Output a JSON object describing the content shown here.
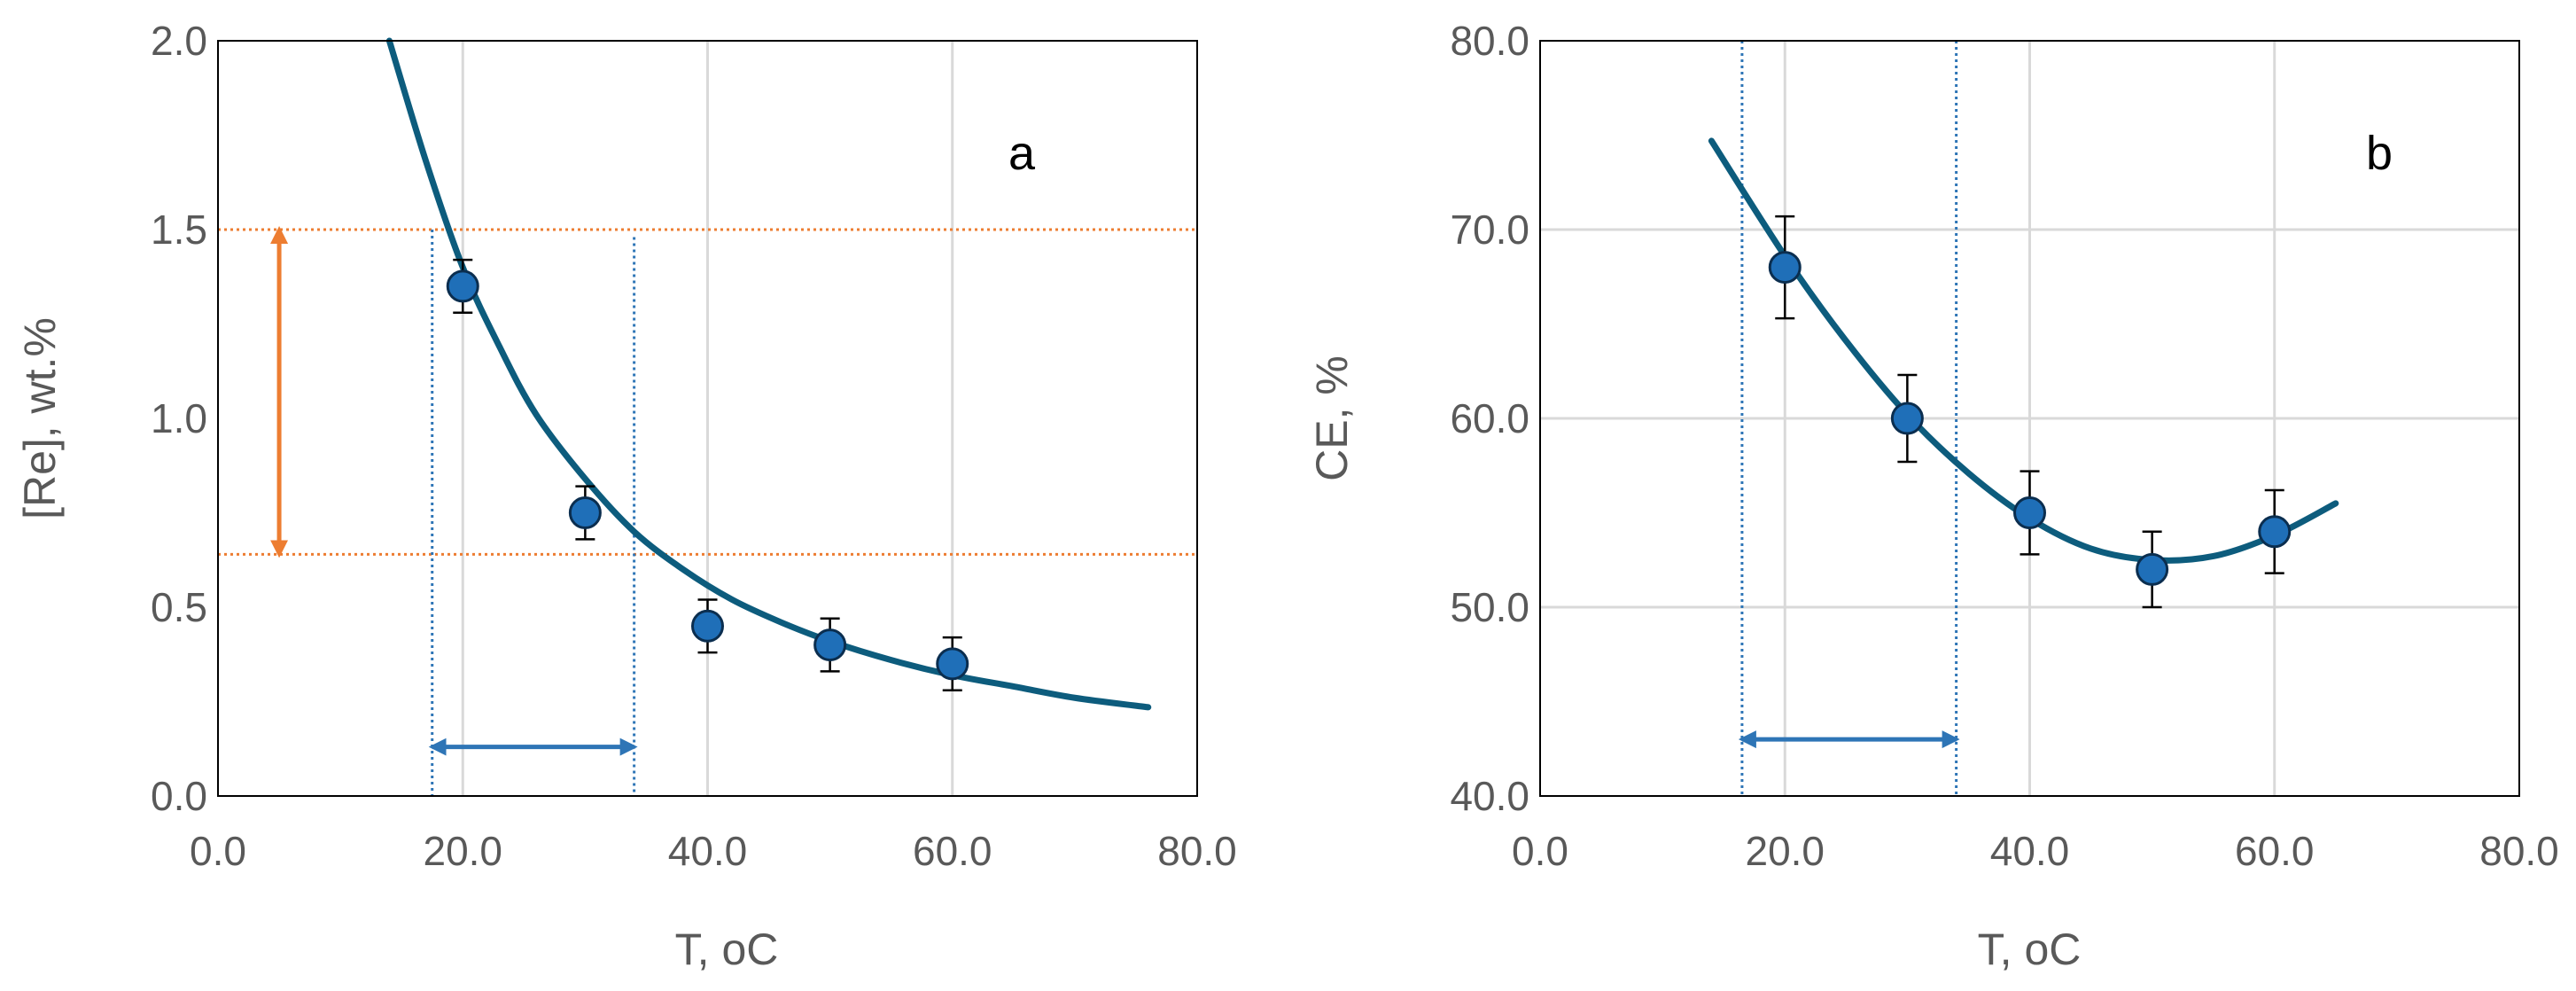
{
  "chart_data": [
    {
      "type": "scatter",
      "panel_label": "a",
      "xlabel": "T, ",
      "xlabel_unit": "oC",
      "ylabel": "[Re], wt.%",
      "xlim": [
        0,
        80
      ],
      "ylim": [
        0,
        2
      ],
      "x_ticks": [
        "0.0",
        "20.0",
        "40.0",
        "60.0",
        "80.0"
      ],
      "y_ticks": [
        "0.0",
        "0.5",
        "1.0",
        "1.5",
        "2.0"
      ],
      "grid": "vertical",
      "series": [
        {
          "kind": "points_with_error_bars",
          "color": "#1f6fb8",
          "x": [
            20,
            30,
            40,
            50,
            60
          ],
          "y": [
            1.35,
            0.75,
            0.45,
            0.4,
            0.35
          ],
          "error": [
            0.07,
            0.07,
            0.07,
            0.07,
            0.07
          ]
        },
        {
          "kind": "fitted_curve",
          "color": "#0d5c7d",
          "x": [
            14,
            17,
            20,
            23,
            26,
            30,
            34,
            38,
            42,
            46,
            50,
            55,
            60,
            65,
            70,
            76
          ],
          "y": [
            2.0,
            1.68,
            1.4,
            1.19,
            1.01,
            0.84,
            0.7,
            0.6,
            0.52,
            0.46,
            0.41,
            0.36,
            0.32,
            0.29,
            0.26,
            0.235
          ]
        }
      ],
      "reference_lines": {
        "horizontal": {
          "color": "#ed7d31",
          "y": [
            1.5,
            0.64
          ]
        },
        "vertical": {
          "color": "#2e75b6",
          "x": [
            17.5,
            34
          ]
        }
      },
      "arrows": [
        {
          "direction": "vertical",
          "color": "#ed7d31",
          "x": 5,
          "from": 1.5,
          "to": 0.64
        },
        {
          "direction": "horizontal",
          "color": "#2e75b6",
          "y": 0.13,
          "from": 17.5,
          "to": 34
        }
      ]
    },
    {
      "type": "scatter",
      "panel_label": "b",
      "xlabel": "T, ",
      "xlabel_unit": "oC",
      "ylabel": "CE, %",
      "xlim": [
        0,
        80
      ],
      "ylim": [
        40,
        80
      ],
      "x_ticks": [
        "0.0",
        "20.0",
        "40.0",
        "60.0",
        "80.0"
      ],
      "y_ticks": [
        "40.0",
        "50.0",
        "60.0",
        "70.0",
        "80.0"
      ],
      "grid": "both",
      "series": [
        {
          "kind": "points_with_error_bars",
          "color": "#1f6fb8",
          "x": [
            20,
            30,
            40,
            50,
            60
          ],
          "y": [
            68,
            60,
            55,
            52,
            54
          ],
          "error": [
            2.7,
            2.3,
            2.2,
            2.0,
            2.2
          ]
        },
        {
          "kind": "fitted_curve",
          "color": "#0d5c7d",
          "x": [
            14,
            20,
            25,
            30,
            35,
            40,
            45,
            50,
            55,
            60,
            65
          ],
          "y": [
            74.7,
            68.6,
            64.1,
            60.2,
            57.1,
            54.7,
            53.1,
            52.5,
            52.7,
            53.8,
            55.5
          ]
        }
      ],
      "reference_lines": {
        "vertical": {
          "color": "#2e75b6",
          "x": [
            16.5,
            34
          ]
        }
      },
      "arrows": [
        {
          "direction": "horizontal",
          "color": "#2e75b6",
          "y": 43,
          "from": 16.5,
          "to": 34
        }
      ]
    }
  ]
}
